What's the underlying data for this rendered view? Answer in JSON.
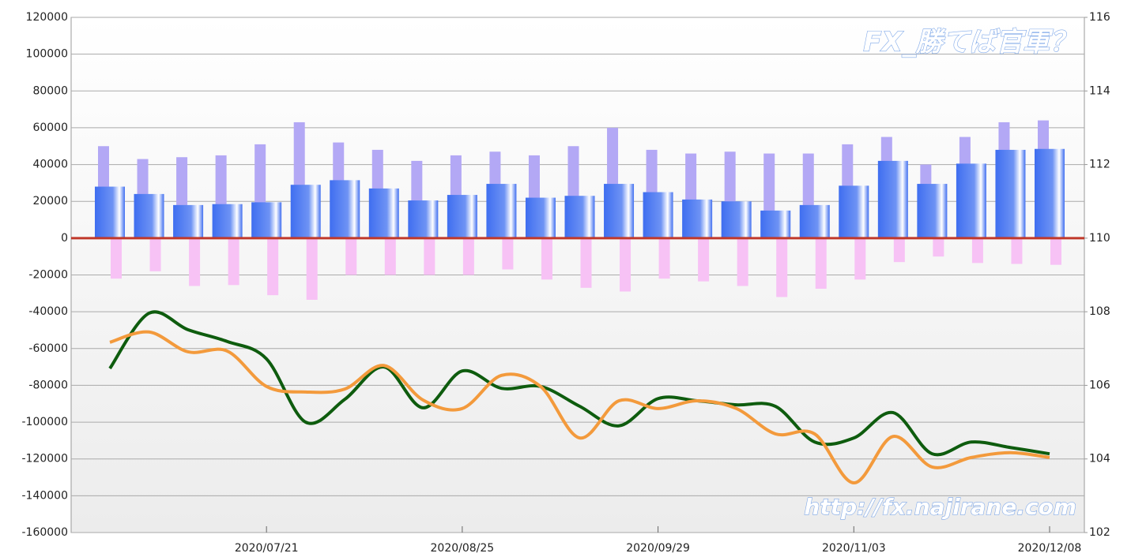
{
  "chart_data": {
    "type": "bar_line",
    "watermark_top": "FX_勝てば官軍？",
    "watermark_bottom": "http://fx.najirane.com",
    "categories": [
      null,
      null,
      null,
      null,
      "2020/07/21",
      null,
      null,
      null,
      null,
      "2020/08/25",
      null,
      null,
      null,
      null,
      "2020/09/29",
      null,
      null,
      null,
      null,
      "2020/11/03",
      null,
      null,
      null,
      null,
      "2020/12/08"
    ],
    "ylim": [
      -160000,
      120000
    ],
    "yticks": [
      -160000,
      -140000,
      -120000,
      -100000,
      -80000,
      -60000,
      -40000,
      -20000,
      0,
      20000,
      40000,
      60000,
      80000,
      100000,
      120000
    ],
    "y2lim": [
      102,
      116
    ],
    "y2ticks": [
      102,
      104,
      106,
      108,
      110,
      112,
      114,
      116
    ],
    "grid": true,
    "series": [
      {
        "kind": "bar",
        "role": "back",
        "color": "#b3a8f5",
        "values": [
          50000,
          43000,
          44000,
          45000,
          51000,
          63000,
          52000,
          48000,
          42000,
          45000,
          47000,
          45000,
          50000,
          60000,
          48000,
          46000,
          47000,
          46000,
          46000,
          51000,
          55000,
          40000,
          55000,
          63000,
          64000
        ]
      },
      {
        "kind": "bar",
        "role": "front",
        "color": "#3f6ef0",
        "values": [
          28000,
          24000,
          18000,
          18500,
          19500,
          29000,
          31500,
          27000,
          20500,
          23500,
          29500,
          22000,
          23000,
          29500,
          25000,
          21000,
          20000,
          15000,
          18000,
          28500,
          42000,
          29500,
          40500,
          48000,
          48500
        ]
      },
      {
        "kind": "bar",
        "role": "neg",
        "color": "#f7c2f5",
        "values": [
          -22000,
          -18000,
          -26000,
          -25500,
          -31000,
          -33500,
          -20000,
          -20000,
          -20000,
          -20000,
          -17000,
          -22500,
          -27000,
          -29000,
          -22000,
          -23500,
          -26000,
          -32000,
          -27500,
          -22500,
          -13000,
          -10000,
          -13500,
          -14000,
          -14500
        ]
      },
      {
        "kind": "line",
        "axis": "y2",
        "color": "#0e5c0e",
        "values": [
          106.46,
          107.96,
          107.51,
          107.19,
          106.72,
          105.0,
          105.62,
          106.5,
          105.39,
          106.39,
          105.92,
          105.97,
          105.43,
          104.9,
          105.64,
          105.58,
          105.47,
          105.43,
          104.46,
          104.57,
          105.26,
          104.14,
          104.46,
          104.31,
          104.14
        ]
      },
      {
        "kind": "line",
        "axis": "y2",
        "color": "#f39a3c",
        "values": [
          107.17,
          107.45,
          106.91,
          106.93,
          105.97,
          105.82,
          105.9,
          106.54,
          105.6,
          105.37,
          106.27,
          105.97,
          104.57,
          105.58,
          105.37,
          105.58,
          105.37,
          104.68,
          104.68,
          103.35,
          104.61,
          103.78,
          104.04,
          104.17,
          104.04
        ]
      }
    ]
  }
}
